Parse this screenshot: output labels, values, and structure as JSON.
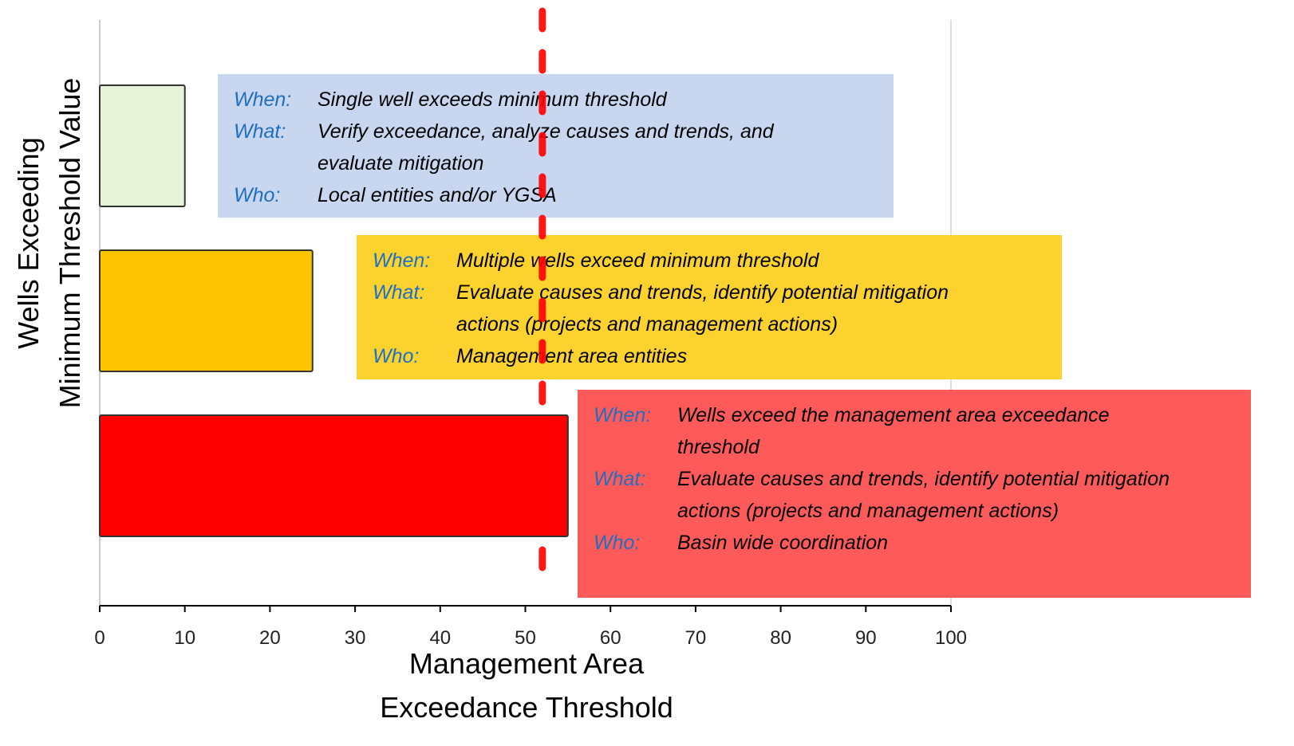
{
  "chart_data": {
    "type": "barh",
    "categories": [
      null,
      null,
      null
    ],
    "values": [
      10,
      25,
      55
    ],
    "colors": [
      "#e6f3d8",
      "#ffc600",
      "#ff0000"
    ],
    "xlim": [
      0,
      100
    ],
    "xticks": [
      0,
      10,
      20,
      30,
      40,
      50,
      60,
      70,
      80,
      90,
      100
    ],
    "x_label": [
      "Management Area",
      "Exceedance Threshold"
    ],
    "y_label": [
      "Wells Exceeding",
      "Minimum Threshold Value"
    ],
    "reference_line": {
      "value": 52,
      "color": "#ff0000",
      "dashed": true
    },
    "annotations": [
      {
        "color": "#c9d6ef",
        "rows": [
          {
            "key": "When:",
            "lines": [
              "Single well exceeds minimum threshold"
            ]
          },
          {
            "key": "What:",
            "lines": [
              "Verify exceedance, analyze causes and trends, and",
              "evaluate mitigation"
            ]
          },
          {
            "key": "Who:",
            "lines": [
              "Local entities and/or YGSA"
            ]
          }
        ]
      },
      {
        "color": "#fcd22e",
        "rows": [
          {
            "key": "When:",
            "lines": [
              "Multiple wells exceed minimum threshold"
            ]
          },
          {
            "key": "What:",
            "lines": [
              "Evaluate causes and trends, identify potential mitigation",
              "actions (projects and management actions)"
            ]
          },
          {
            "key": "Who:",
            "lines": [
              "Management area entities"
            ]
          }
        ]
      },
      {
        "color": "#ff5a5a",
        "rows": [
          {
            "key": "When:",
            "lines": [
              "Wells exceed the management area exceedance",
              "threshold"
            ]
          },
          {
            "key": "What:",
            "lines": [
              "Evaluate causes and trends, identify potential mitigation",
              "actions (projects and management actions)"
            ]
          },
          {
            "key": "Who:",
            "lines": [
              "Basin wide coordination"
            ]
          }
        ]
      }
    ]
  }
}
